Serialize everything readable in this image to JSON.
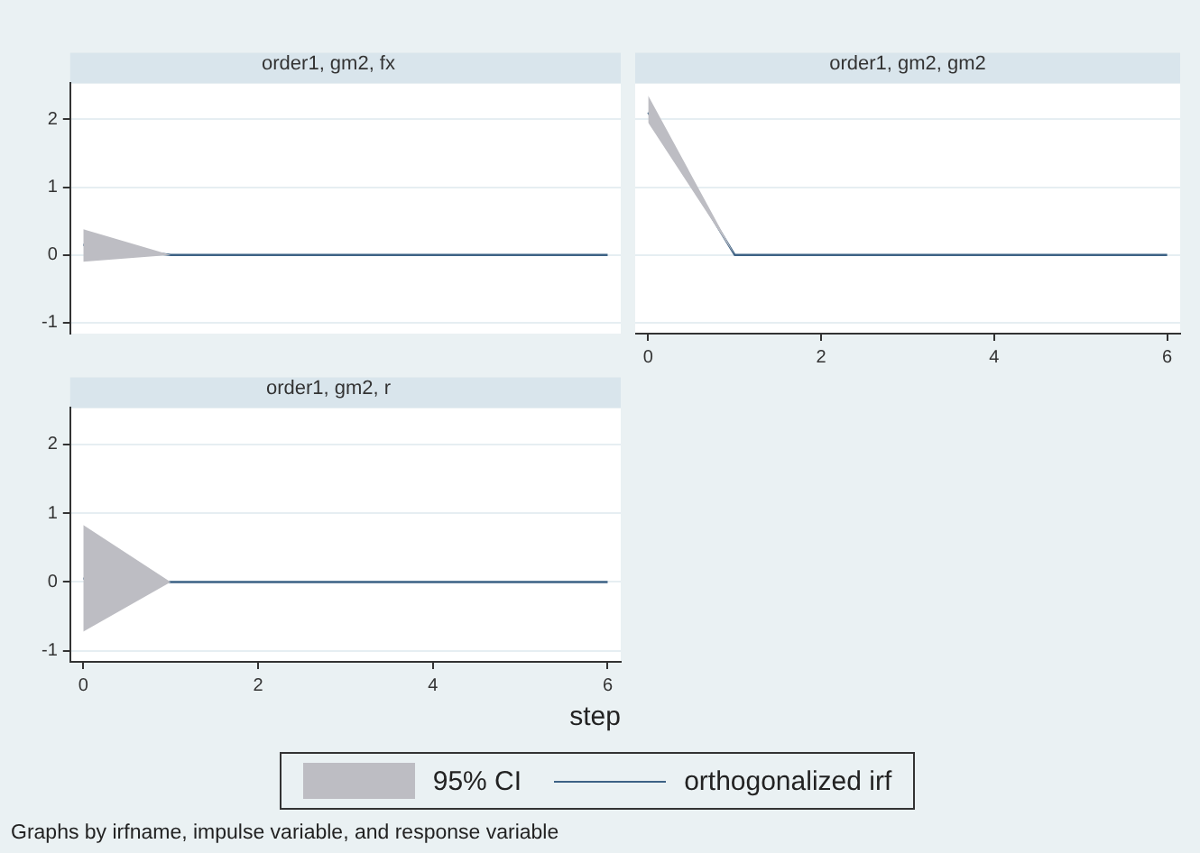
{
  "chart_data": [
    {
      "type": "line",
      "title": "order1, gm2, fx",
      "x": [
        0,
        1,
        2,
        3,
        4,
        5,
        6
      ],
      "xlim": [
        -0.15,
        6.15
      ],
      "xticks": [
        0,
        2,
        4,
        6
      ],
      "ylim": [
        -1.16,
        2.53
      ],
      "yticks": [
        -1,
        0,
        1,
        2
      ],
      "grid": "y",
      "tick_labels": "y",
      "series": [
        {
          "color": "#3d6285",
          "values": [
            0.15,
            0,
            0,
            0,
            0,
            0,
            0
          ],
          "lower": [
            -0.1,
            0,
            0,
            0,
            0,
            0,
            0
          ],
          "upper": [
            0.38,
            0,
            0,
            0,
            0,
            0,
            0
          ]
        }
      ]
    },
    {
      "type": "line",
      "title": "order1, gm2, gm2",
      "x": [
        0,
        1,
        2,
        3,
        4,
        5,
        6
      ],
      "xlim": [
        -0.15,
        6.15
      ],
      "xticks": [
        0,
        2,
        4,
        6
      ],
      "ylim": [
        -1.16,
        2.53
      ],
      "yticks": [
        -1,
        0,
        1,
        2
      ],
      "grid": "y",
      "tick_labels": "x",
      "series": [
        {
          "color": "#3d6285",
          "values": [
            2.1,
            0,
            0,
            0,
            0,
            0,
            0
          ],
          "lower": [
            1.95,
            0,
            0,
            0,
            0,
            0,
            0
          ],
          "upper": [
            2.35,
            0,
            0,
            0,
            0,
            0,
            0
          ]
        }
      ]
    },
    {
      "type": "line",
      "title": "order1, gm2, r",
      "xlabel": "step",
      "x": [
        0,
        1,
        2,
        3,
        4,
        5,
        6
      ],
      "xlim": [
        -0.15,
        6.15
      ],
      "xticks": [
        0,
        2,
        4,
        6
      ],
      "ylim": [
        -1.16,
        2.53
      ],
      "yticks": [
        -1,
        0,
        1,
        2
      ],
      "grid": "y",
      "legend": "bottom",
      "annotations": [
        "95% CI",
        "Graphs by irfname, impulse variable, and response variable"
      ],
      "series": [
        {
          "name": "orthogonalized irf",
          "color": "#3d6285",
          "values": [
            0.05,
            0,
            0,
            0,
            0,
            0,
            0
          ],
          "lower": [
            -0.72,
            0,
            0,
            0,
            0,
            0,
            0
          ],
          "upper": [
            0.83,
            0,
            0,
            0,
            0,
            0,
            0
          ]
        }
      ]
    }
  ]
}
